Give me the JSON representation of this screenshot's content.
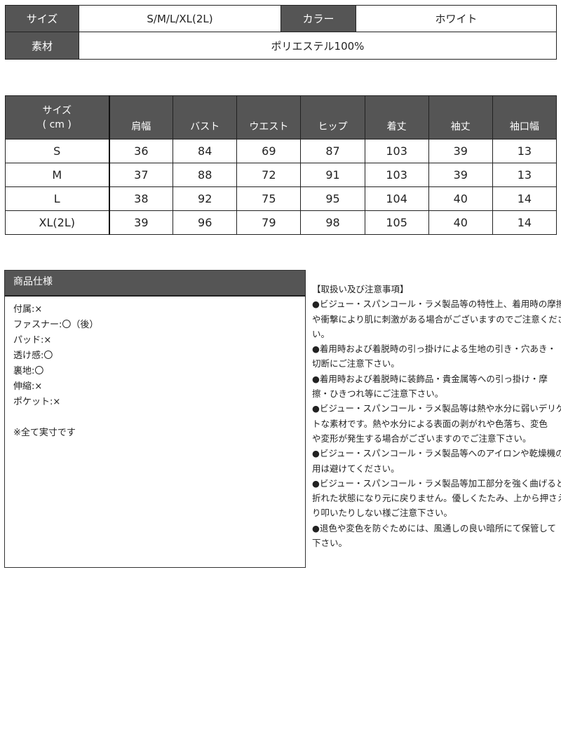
{
  "summary": {
    "size_label": "サイズ",
    "size_value": "S/M/L/XL(2L)",
    "color_label": "カラー",
    "color_value": "ホワイト",
    "material_label": "素材",
    "material_value": "ポリエステル100%"
  },
  "size_table": {
    "header_line1": "サイズ",
    "header_line2": "( cm )",
    "columns": [
      "肩幅",
      "バスト",
      "ウエスト",
      "ヒップ",
      "着丈",
      "袖丈",
      "袖口幅"
    ],
    "rows": [
      {
        "size": "S",
        "values": [
          "36",
          "84",
          "69",
          "87",
          "103",
          "39",
          "13"
        ]
      },
      {
        "size": "M",
        "values": [
          "37",
          "88",
          "72",
          "91",
          "103",
          "39",
          "13"
        ]
      },
      {
        "size": "L",
        "values": [
          "38",
          "92",
          "75",
          "95",
          "104",
          "40",
          "14"
        ]
      },
      {
        "size": "XL(2L)",
        "values": [
          "39",
          "96",
          "79",
          "98",
          "105",
          "40",
          "14"
        ]
      }
    ]
  },
  "spec": {
    "title": "商品仕様",
    "lines": [
      "付属:×",
      "ファスナー:〇（後）",
      "パッド:×",
      "透け感:〇",
      "裏地:〇",
      "伸縮:×",
      "ポケット:×",
      "",
      "※全て実寸です"
    ]
  },
  "notes": {
    "lines": [
      "【取扱い及び注意事項】",
      "●ビジュー・スパンコール・ラメ製品等の特性上、着用時の摩擦",
      "や衝撃により肌に刺激がある場合がございますのでご注意くださ",
      "い。",
      "●着用時および着脱時の引っ掛けによる生地の引き・穴あき・",
      "切断にご注意下さい。",
      "●着用時および着脱時に装飾品・貴金属等への引っ掛け・摩",
      "擦・ひきつれ等にご注意下さい。",
      "●ビジュー・スパンコール・ラメ製品等は熱や水分に弱いデリケー",
      "トな素材です。熱や水分による表面の剥がれや色落ち、変色",
      "や変形が発生する場合がございますのでご注意下さい。",
      "●ビジュー・スパンコール・ラメ製品等へのアイロンや乾燥機の使",
      "用は避けてください。",
      "●ビジュー・スパンコール・ラメ製品等加工部分を強く曲げると",
      "折れた状態になり元に戻りません。優しくたたみ、上から押さえた",
      "り叩いたりしない様ご注意下さい。",
      "●退色や変色を防ぐためには、風通しの良い暗所にて保管して",
      "下さい。"
    ]
  }
}
